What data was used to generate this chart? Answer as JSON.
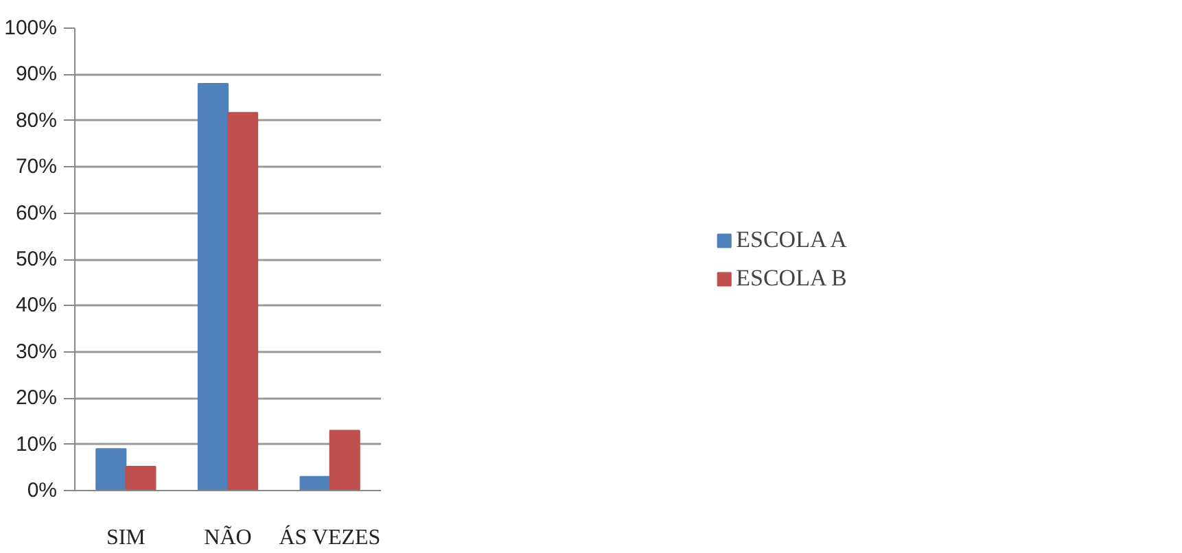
{
  "chart_data": {
    "type": "bar",
    "categories": [
      "SIM",
      "NÃO",
      "ÁS VEZES"
    ],
    "series": [
      {
        "name": "ESCOLA A",
        "color": "#4f81bd",
        "values": [
          9,
          88,
          3
        ]
      },
      {
        "name": "ESCOLA B",
        "color": "#c0504d",
        "values": [
          5.2,
          81.7,
          13
        ]
      }
    ],
    "ylim": [
      0,
      100
    ],
    "yticks": [
      {
        "value": 0,
        "label": "0%"
      },
      {
        "value": 10,
        "label": "10%"
      },
      {
        "value": 20,
        "label": "20%"
      },
      {
        "value": 30,
        "label": "30%"
      },
      {
        "value": 40,
        "label": "40%"
      },
      {
        "value": 50,
        "label": "50%"
      },
      {
        "value": 60,
        "label": "60%"
      },
      {
        "value": 70,
        "label": "70%"
      },
      {
        "value": 80,
        "label": "80%"
      },
      {
        "value": 90,
        "label": "90%"
      },
      {
        "value": 100,
        "label": "100%"
      }
    ],
    "grid": "y",
    "legend": "right"
  }
}
